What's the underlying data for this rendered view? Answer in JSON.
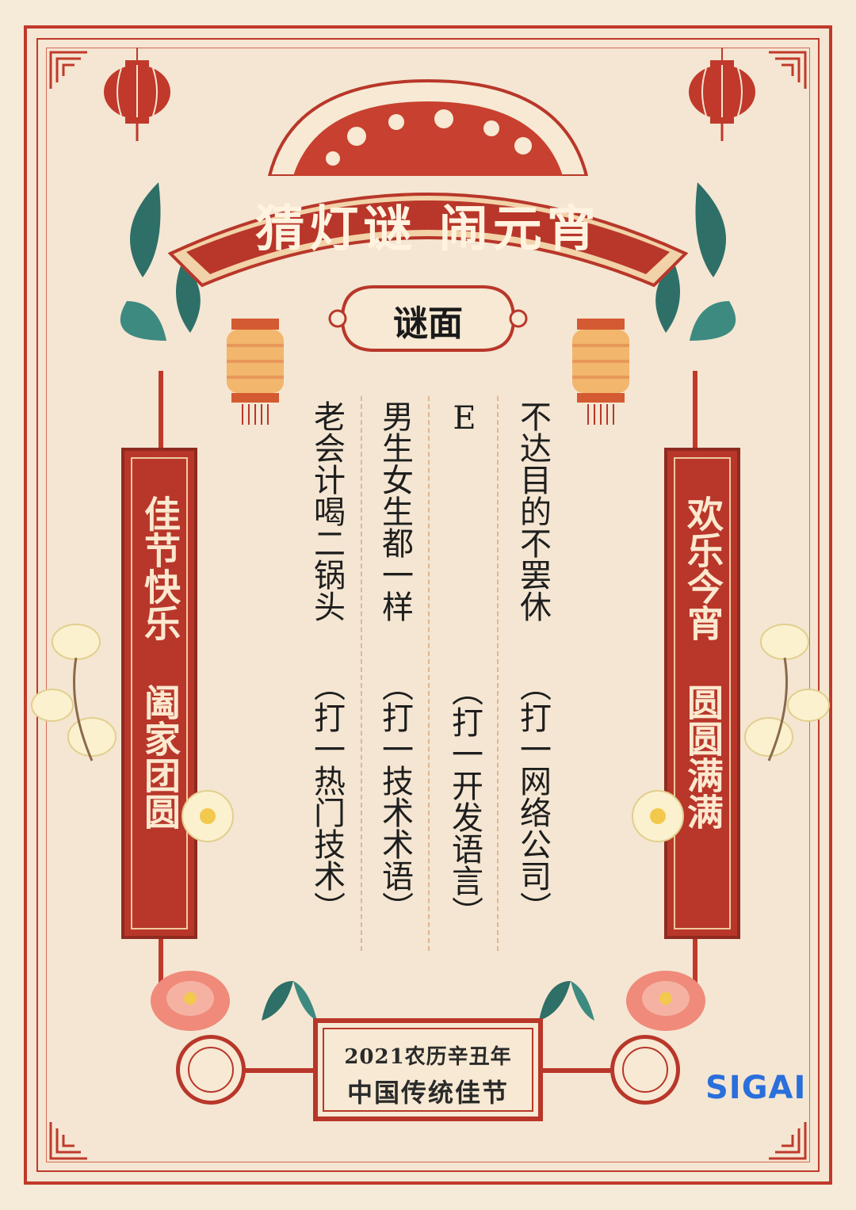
{
  "title": "猜灯谜 闹元宵",
  "subtitle": "谜面",
  "riddles": [
    {
      "question": "不达目的不罢休",
      "hint": "（打一网络公司）"
    },
    {
      "question": "E",
      "hint": "（打一开发语言）"
    },
    {
      "question": "男生女生都一样",
      "hint": "（打一技术术语）"
    },
    {
      "question": "老会计喝二锅头",
      "hint": "（打一热门技术）"
    }
  ],
  "couplets": {
    "left": "佳节快乐 阖家团圆",
    "right": "欢乐今宵 圆圆满满"
  },
  "footer": {
    "year_line": "2021农历辛丑年",
    "name_line": "中国传统佳节"
  },
  "logo": "SIGAI",
  "colors": {
    "primary_red": "#b8372a",
    "background": "#f6ead8",
    "lantern_gold": "#f2b66d",
    "leaf_teal": "#2e6f68",
    "logo_blue": "#2a6fdb"
  },
  "icons": [
    "lantern-icon",
    "corner-ornament-icon",
    "flower-icon",
    "peony-icon",
    "knot-medallion-icon"
  ]
}
